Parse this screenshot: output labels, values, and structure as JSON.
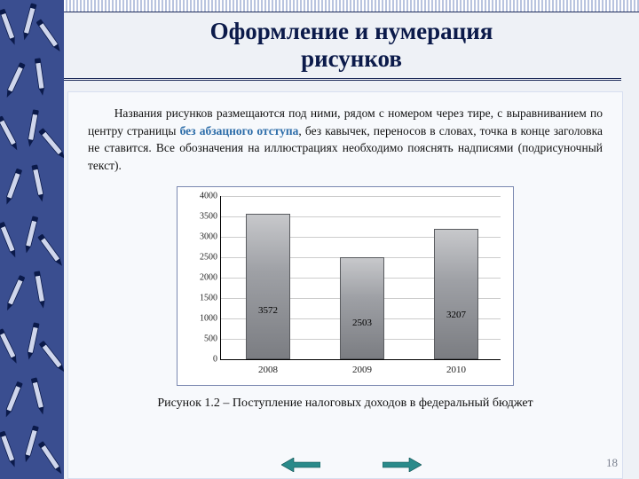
{
  "title": {
    "line1": "Оформление и нумерация",
    "line2": "рисунков"
  },
  "paragraph": {
    "pre": "Названия рисунков размещаются под ними, рядом с номером через тире, с выравниванием по центру страницы ",
    "highlight": "без абзацного отступа",
    "post": ", без кавычек, переносов в словах, точка в конце заголовка не ставится. Все обозначения на иллюстрациях необходимо пояснять надписями (подрисуночный текст)."
  },
  "chart": {
    "type": "bar",
    "categories": [
      "2008",
      "2009",
      "2010"
    ],
    "values": [
      3572,
      2503,
      3207
    ],
    "ylim": [
      0,
      4000
    ],
    "ytick_step": 500,
    "bar_color_gradient": [
      "#c7c8cb",
      "#9ea0a5",
      "#7b7d82"
    ],
    "bar_border": "#5a5c60",
    "grid_color": "#cccccc",
    "axis_color": "#000000",
    "background_color": "#ffffff",
    "border_color": "#7a88b0",
    "tick_fontsize": 10,
    "label_fontsize": 11
  },
  "caption": "Рисунок 1.2 – Поступление налоговых доходов в федеральный бюджет",
  "page_number": "18",
  "colors": {
    "frame_navy": "#1d2b5a",
    "sidebar_blue": "#2a3d7a",
    "page_bg": "#eef1f6",
    "content_bg": "#f7f9fc",
    "highlight_text": "#2d6da9",
    "arrow_teal": "#2a8a8a"
  }
}
